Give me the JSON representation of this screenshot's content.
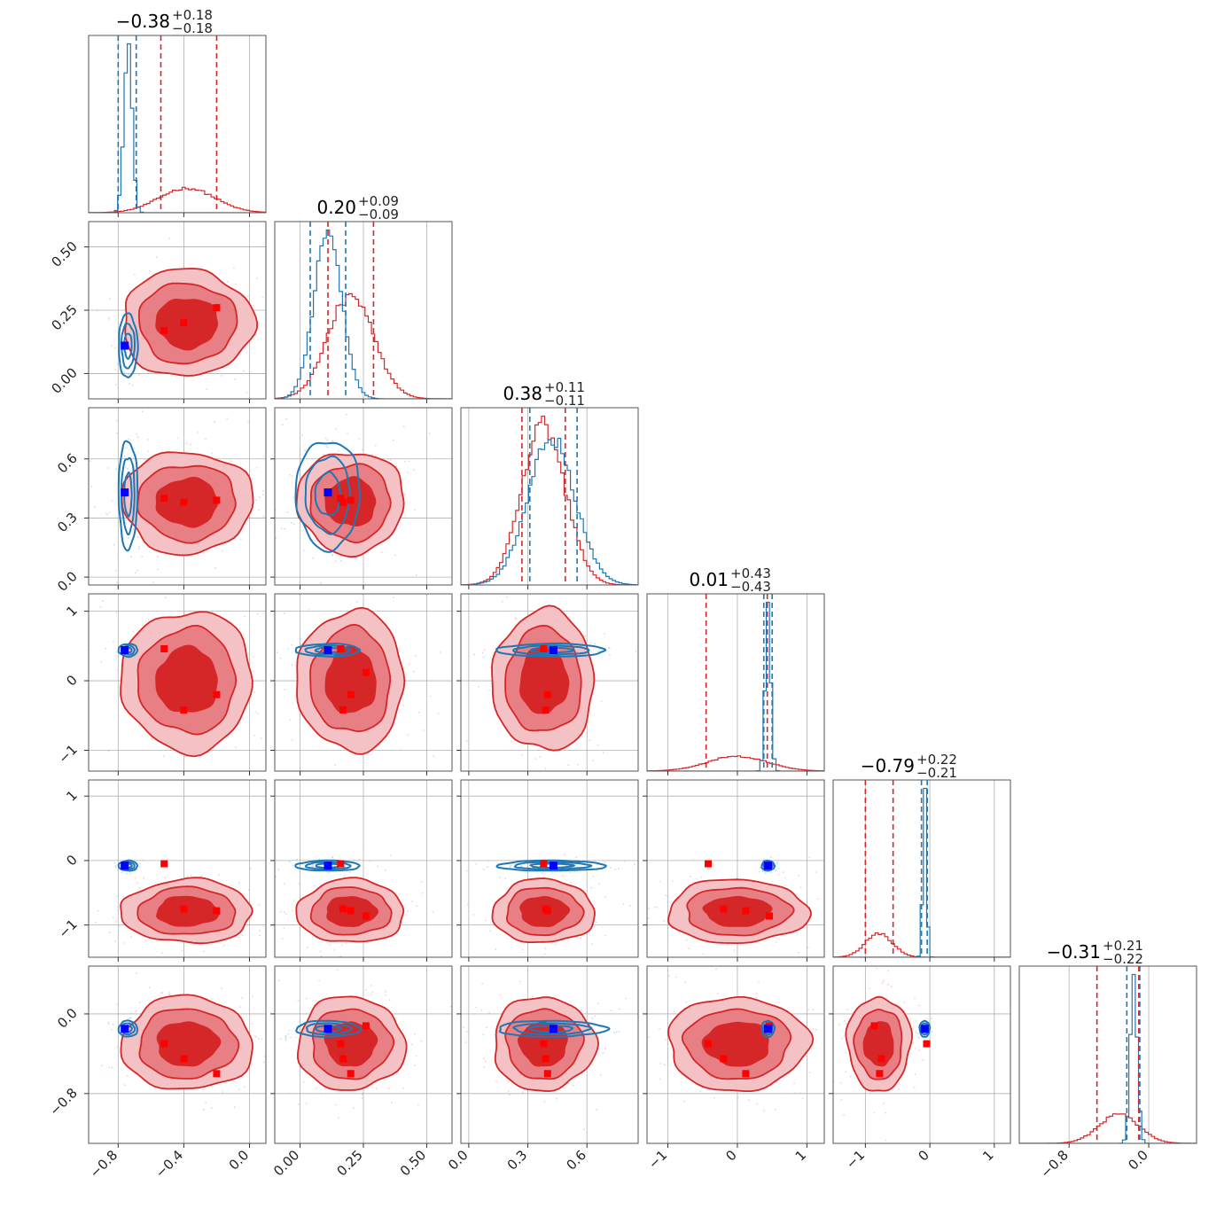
{
  "chart_data": {
    "type": "corner",
    "n_params": 6,
    "series": [
      {
        "name": "",
        "color": "#d62728",
        "role": "filled posterior contours + histograms"
      },
      {
        "name": "",
        "color": "#1f77b4",
        "role": "line posterior contours + histograms"
      }
    ],
    "parameters": [
      {
        "title_value": "−0.38",
        "title_plus": "+0.18",
        "title_minus": "−0.18",
        "range": [
          -0.98,
          0.1
        ],
        "ticks": [
          -0.8,
          -0.4,
          0.0
        ],
        "tick_labels": [
          "−0.8",
          "−0.4",
          "0.0"
        ],
        "red": {
          "mean": -0.38,
          "sd": 0.17,
          "q16": -0.54,
          "q84": -0.2
        },
        "blue": {
          "mean": -0.74,
          "sd": 0.025,
          "q16": -0.8,
          "q84": -0.69
        },
        "blue_marker": -0.76,
        "red_markers": [
          -0.52,
          -0.4,
          -0.2
        ]
      },
      {
        "title_value": "0.20",
        "title_plus": "+0.09",
        "title_minus": "−0.09",
        "range": [
          -0.1,
          0.6
        ],
        "ticks": [
          0.0,
          0.25,
          0.5
        ],
        "tick_labels": [
          "0.00",
          "0.25",
          "0.50"
        ],
        "red": {
          "mean": 0.2,
          "sd": 0.09,
          "q16": 0.11,
          "q84": 0.29
        },
        "blue": {
          "mean": 0.11,
          "sd": 0.055,
          "q16": 0.04,
          "q84": 0.18
        },
        "blue_marker": 0.11,
        "red_markers": [
          0.16,
          0.17,
          0.2,
          0.26
        ]
      },
      {
        "title_value": "0.38",
        "title_plus": "+0.11",
        "title_minus": "−0.11",
        "range": [
          -0.04,
          0.86
        ],
        "ticks": [
          0.0,
          0.3,
          0.6
        ],
        "tick_labels": [
          "0.0",
          "0.3",
          "0.6"
        ],
        "red": {
          "mean": 0.38,
          "sd": 0.11,
          "q16": 0.27,
          "q84": 0.49
        },
        "blue": {
          "mean": 0.42,
          "sd": 0.12,
          "q16": 0.31,
          "q84": 0.55
        },
        "blue_marker": 0.43,
        "red_markers": [
          0.38,
          0.39,
          0.4
        ]
      },
      {
        "title_value": "0.01",
        "title_plus": "+0.43",
        "title_minus": "−0.43",
        "range": [
          -1.3,
          1.25
        ],
        "ticks": [
          -1,
          0,
          1
        ],
        "tick_labels": [
          "−1",
          "0",
          "1"
        ],
        "red": {
          "mean": 0.0,
          "sd": 0.43,
          "q16": -0.45,
          "q84": 0.43
        },
        "blue": {
          "mean": 0.44,
          "sd": 0.04,
          "q16": 0.38,
          "q84": 0.5
        },
        "blue_marker": 0.44,
        "red_markers": [
          -0.42,
          -0.2,
          0.12,
          0.46
        ]
      },
      {
        "title_value": "−0.79",
        "title_plus": "+0.22",
        "title_minus": "−0.21",
        "range": [
          -1.5,
          1.25
        ],
        "ticks": [
          -1,
          0,
          1
        ],
        "tick_labels": [
          "−1",
          "0",
          "1"
        ],
        "red": {
          "mean": -0.79,
          "sd": 0.21,
          "q16": -1.0,
          "q84": -0.57
        },
        "blue": {
          "mean": -0.08,
          "sd": 0.03,
          "q16": -0.13,
          "q84": -0.04
        },
        "blue_marker": -0.08,
        "red_markers": [
          -0.05,
          -0.75,
          -0.78,
          -0.86
        ]
      },
      {
        "title_value": "−0.31",
        "title_plus": "+0.21",
        "title_minus": "−0.22",
        "range": [
          -1.3,
          0.48
        ],
        "ticks": [
          -0.8,
          0.0
        ],
        "tick_labels": [
          "−0.8",
          "0.0"
        ],
        "red": {
          "mean": -0.3,
          "sd": 0.2,
          "q16": -0.52,
          "q84": -0.1
        },
        "blue": {
          "mean": -0.15,
          "sd": 0.035,
          "q16": -0.22,
          "q84": -0.09
        },
        "blue_marker": -0.15,
        "red_markers": [
          -0.12,
          -0.3,
          -0.45,
          -0.6
        ]
      }
    ],
    "grid": true,
    "legend": "none"
  }
}
